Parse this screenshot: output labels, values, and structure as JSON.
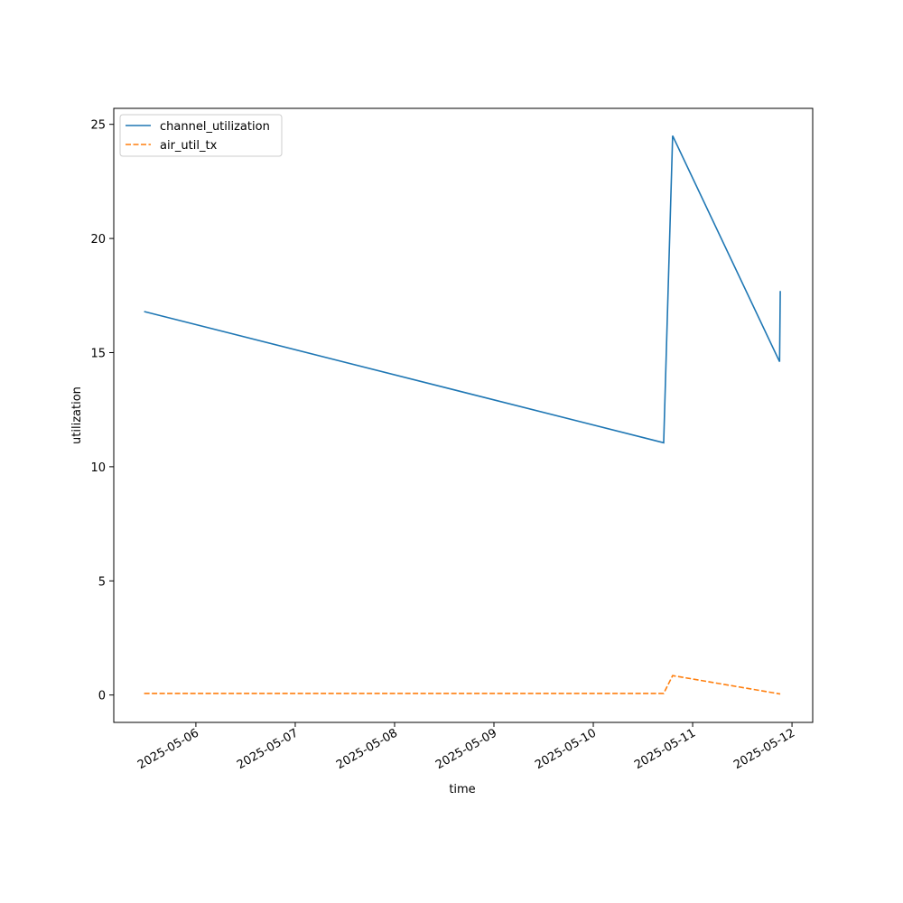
{
  "chart_data": {
    "type": "line",
    "xlabel": "time",
    "ylabel": "utilization",
    "x": [
      "2025-05-05T11:30",
      "2025-05-10T17:00",
      "2025-05-10T19:10",
      "2025-05-11T21:00",
      "2025-05-11T21:10"
    ],
    "series": [
      {
        "name": "channel_utilization",
        "color": "#1f77b4",
        "dash": "solid",
        "values": [
          16.8,
          11.05,
          24.5,
          14.6,
          17.7
        ]
      },
      {
        "name": "air_util_tx",
        "color": "#ff7f0e",
        "dash": "dashed",
        "values": [
          0.07,
          0.07,
          0.85,
          0.05,
          0.05
        ]
      }
    ],
    "xlim": [
      "2025-05-05T04:10",
      "2025-05-12T05:00"
    ],
    "xticks": [
      "2025-05-06",
      "2025-05-07",
      "2025-05-08",
      "2025-05-09",
      "2025-05-10",
      "2025-05-11",
      "2025-05-12"
    ],
    "ylim": [
      -1.2,
      25.7
    ],
    "yticks": [
      0,
      5,
      10,
      15,
      20,
      25
    ],
    "grid": false,
    "legend": "upper left"
  }
}
